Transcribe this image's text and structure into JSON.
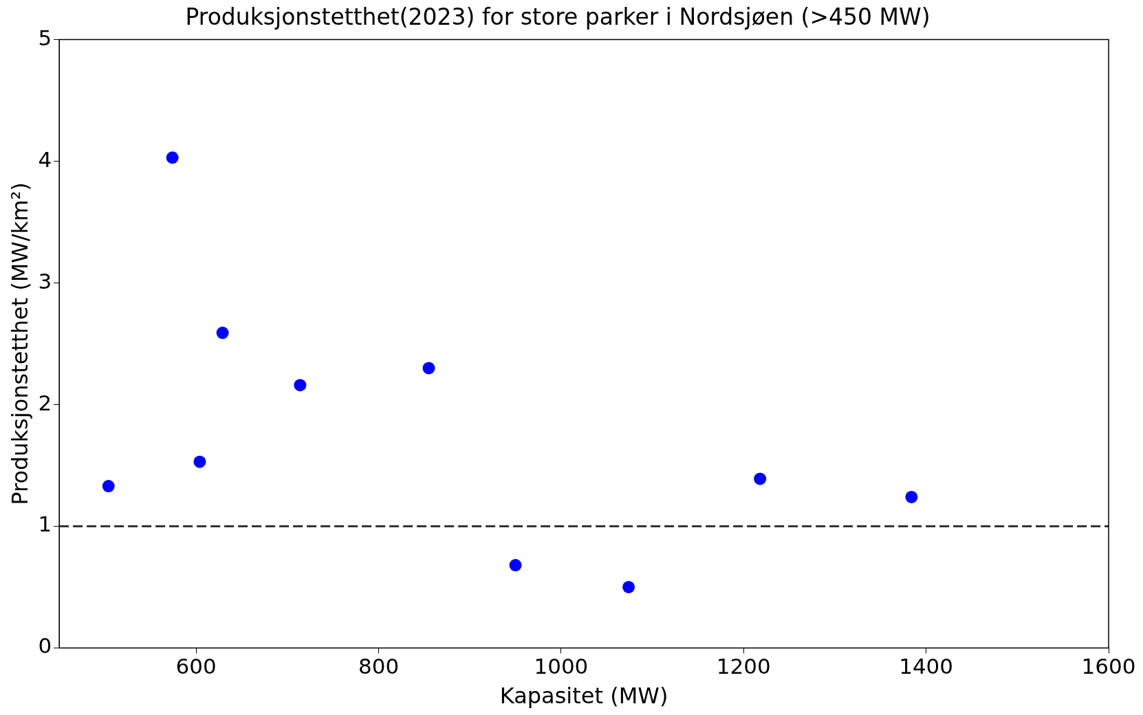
{
  "chart_data": {
    "type": "scatter",
    "title": "Produksjonstetthet(2023) for store parker i Nordsjøen (>450 MW)",
    "xlabel": "Kapasitet (MW)",
    "ylabel": "Produksjonstetthet (MW/km²)",
    "x": [
      504,
      574,
      604,
      629,
      714,
      855,
      950,
      1074,
      1218,
      1384
    ],
    "series": [
      {
        "color": "#0000ff",
        "values": [
          1.33,
          4.03,
          1.53,
          2.59,
          2.16,
          2.3,
          0.68,
          0.5,
          1.39,
          1.24
        ]
      }
    ],
    "xlim": [
      450,
      1600
    ],
    "xticks": [
      600,
      800,
      1000,
      1200,
      1400,
      1600
    ],
    "ylim": [
      0,
      5
    ],
    "yticks": [
      0,
      1,
      2,
      3,
      4,
      5
    ],
    "ref_lines": [
      {
        "axis": "y",
        "value": 1,
        "color": "#333333",
        "line_style": "dashed"
      }
    ],
    "grid": false,
    "legend": false,
    "marker": "circle"
  }
}
